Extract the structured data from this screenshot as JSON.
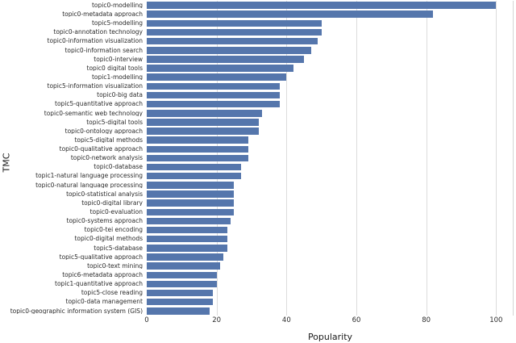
{
  "chart_data": {
    "type": "bar",
    "orientation": "horizontal",
    "title": "",
    "xlabel": "Popularity",
    "ylabel": "TMC",
    "xlim": [
      0,
      105
    ],
    "xticks": [
      0,
      20,
      40,
      60,
      80,
      100
    ],
    "grid": true,
    "legend_position": "none",
    "bar_color": "#5576ac",
    "grid_color": "#dcdcdc",
    "categories": [
      "topic0-modelling",
      "topic0-metadata approach",
      "topic5-modelling",
      "topic0-annotation technology",
      "topic0-information visualization",
      "topic0-information search",
      "topic0-interview",
      "topic0 digital tools",
      "topic1-modelling",
      "topic5-information visualization",
      "topic0-big data",
      "topic5-quantitative approach",
      "topic0-semantic web technology",
      "topic5-digital tools",
      "topic0-ontology approach",
      "topic5-digital methods",
      "topic0-qualitative approach",
      "topic0-network analysis",
      "topic0-database",
      "topic1-natural language processing",
      "topic0-natural language processing",
      "topic0-statistical analysis",
      "topic0-digital library",
      "topic0-evaluation",
      "topic0-systems approach",
      "topic0-tei encoding",
      "topic0-digital methods",
      "topic5-database",
      "topic5-qualitative approach",
      "topic0-text mining",
      "topic6-metadata approach",
      "topic1-quantitative approach",
      "topic5-close reading",
      "topic0-data management",
      "topic0-geographic information system (GIS)"
    ],
    "values": [
      100,
      82,
      50,
      50,
      49,
      47,
      45,
      42,
      40,
      38,
      38,
      38,
      33,
      32,
      32,
      29,
      29,
      29,
      27,
      27,
      25,
      25,
      25,
      25,
      24,
      23,
      23,
      23,
      22,
      21,
      20,
      20,
      19,
      19,
      18
    ]
  }
}
